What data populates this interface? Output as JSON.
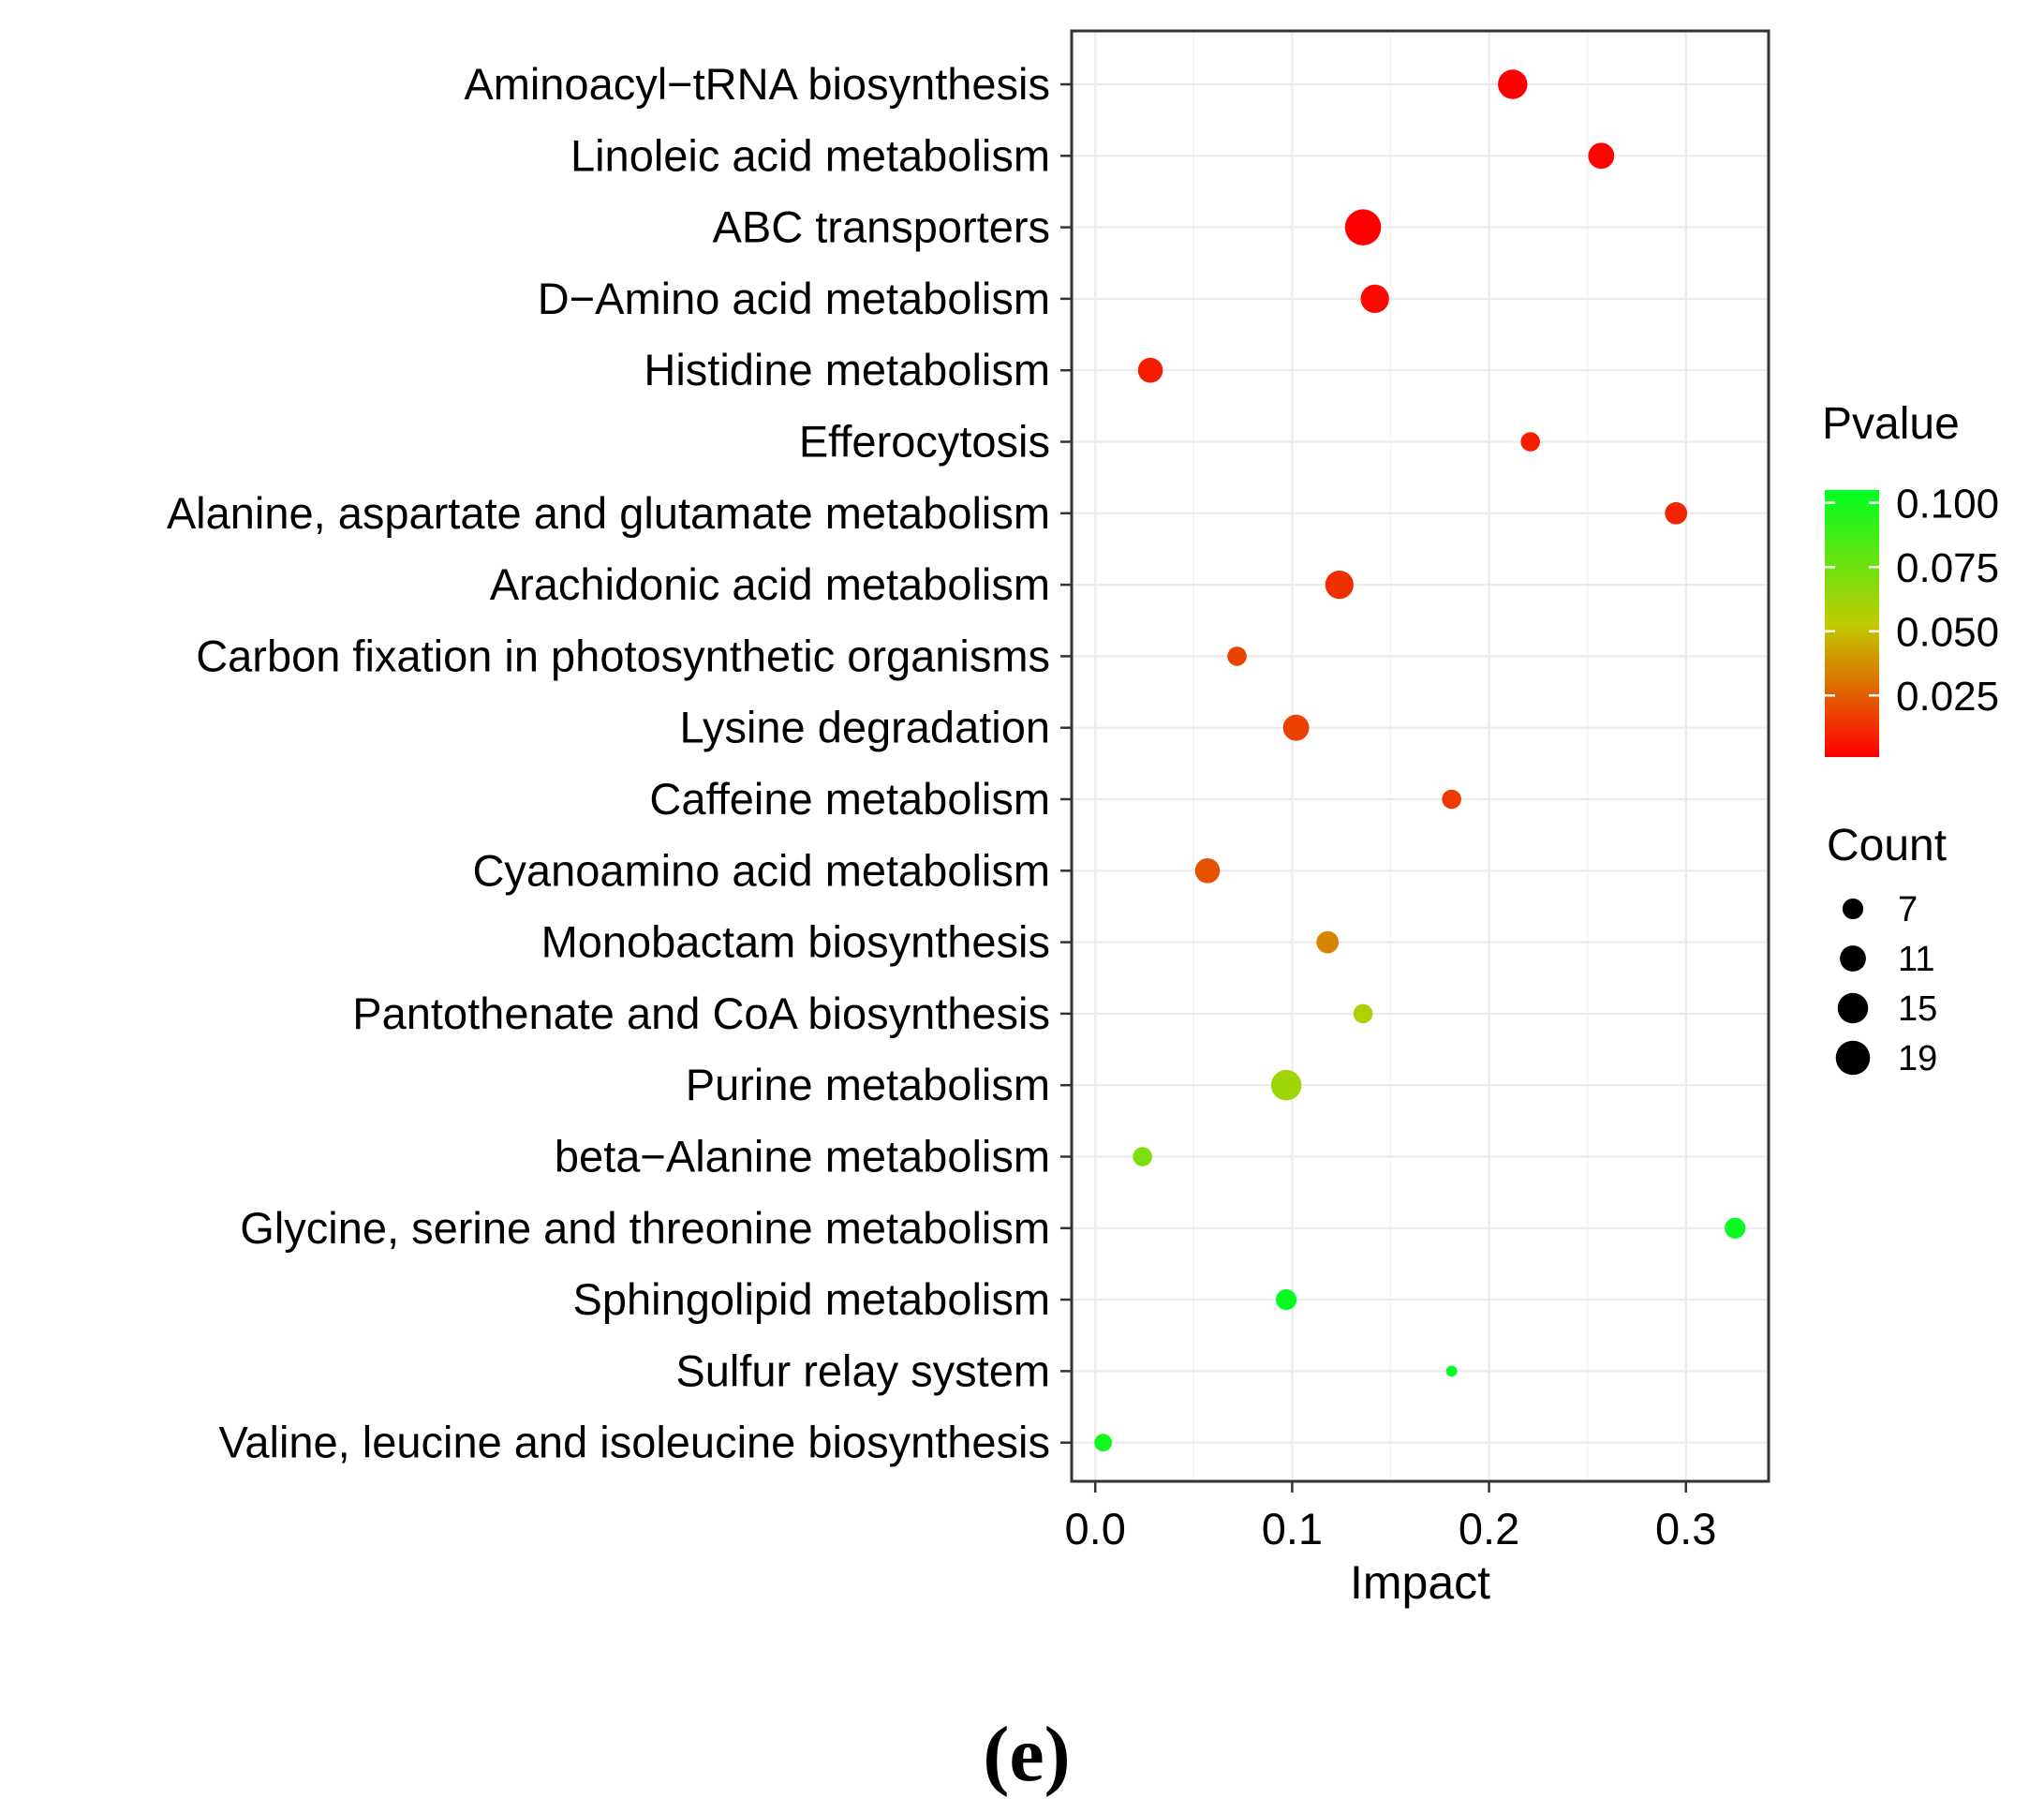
{
  "chart_data": {
    "type": "scatter",
    "xlabel": "Impact",
    "xlim": [
      -0.012,
      0.342
    ],
    "xticks": [
      0.0,
      0.1,
      0.2,
      0.3
    ],
    "xtick_labels": [
      "0.0",
      "0.1",
      "0.2",
      "0.3"
    ],
    "grid": true,
    "caption": "(e)",
    "categories": [
      "Aminoacyl−tRNA biosynthesis",
      "Linoleic acid metabolism",
      "ABC transporters",
      "D−Amino acid metabolism",
      "Histidine metabolism",
      "Efferocytosis",
      "Alanine, aspartate and glutamate metabolism",
      "Arachidonic acid metabolism",
      "Carbon fixation in photosynthetic organisms",
      "Lysine degradation",
      "Caffeine metabolism",
      "Cyanoamino acid metabolism",
      "Monobactam biosynthesis",
      "Pantothenate and CoA biosynthesis",
      "Purine metabolism",
      "beta−Alanine metabolism",
      "Glycine, serine and threonine metabolism",
      "Sphingolipid metabolism",
      "Sulfur relay system",
      "Valine, leucine and isoleucine biosynthesis"
    ],
    "points": [
      {
        "impact": 0.212,
        "pvalue": 0.001,
        "count": 14
      },
      {
        "impact": 0.257,
        "pvalue": 0.002,
        "count": 11
      },
      {
        "impact": 0.136,
        "pvalue": 0.001,
        "count": 21
      },
      {
        "impact": 0.142,
        "pvalue": 0.003,
        "count": 13
      },
      {
        "impact": 0.028,
        "pvalue": 0.008,
        "count": 10
      },
      {
        "impact": 0.221,
        "pvalue": 0.009,
        "count": 6
      },
      {
        "impact": 0.295,
        "pvalue": 0.01,
        "count": 8
      },
      {
        "impact": 0.124,
        "pvalue": 0.013,
        "count": 13
      },
      {
        "impact": 0.072,
        "pvalue": 0.018,
        "count": 6
      },
      {
        "impact": 0.102,
        "pvalue": 0.017,
        "count": 11
      },
      {
        "impact": 0.181,
        "pvalue": 0.016,
        "count": 6
      },
      {
        "impact": 0.057,
        "pvalue": 0.022,
        "count": 10
      },
      {
        "impact": 0.118,
        "pvalue": 0.035,
        "count": 8
      },
      {
        "impact": 0.136,
        "pvalue": 0.058,
        "count": 6
      },
      {
        "impact": 0.097,
        "pvalue": 0.062,
        "count": 15
      },
      {
        "impact": 0.024,
        "pvalue": 0.072,
        "count": 6
      },
      {
        "impact": 0.325,
        "pvalue": 0.103,
        "count": 7
      },
      {
        "impact": 0.097,
        "pvalue": 0.103,
        "count": 7
      },
      {
        "impact": 0.181,
        "pvalue": 0.103,
        "count": 2
      },
      {
        "impact": 0.004,
        "pvalue": 0.101,
        "count": 5
      }
    ],
    "color_legend": {
      "title": "Pvalue",
      "range": [
        0.001,
        0.105
      ],
      "low_color": "#ff0000",
      "mid_color": "#c0cc00",
      "high_color": "#00ff22",
      "ticks": [
        0.1,
        0.075,
        0.05,
        0.025
      ],
      "tick_labels": [
        "0.100",
        "0.075",
        "0.050",
        "0.025"
      ]
    },
    "size_legend": {
      "title": "Count",
      "values": [
        7,
        11,
        15,
        19
      ],
      "labels": [
        "7",
        "11",
        "15",
        "19"
      ]
    }
  }
}
